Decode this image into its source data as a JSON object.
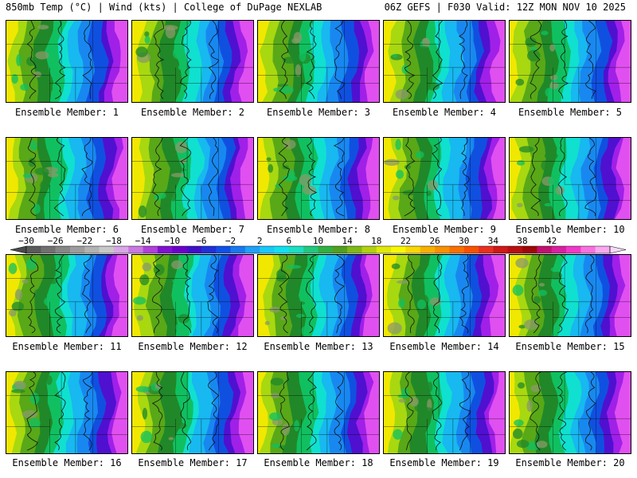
{
  "header": {
    "left": "850mb Temp (°C) | Wind (kts) | College of DuPage NEXLAB",
    "right": "06Z GEFS | F030 Valid: 12Z MON NOV 10 2025"
  },
  "colorbar": {
    "tick_labels": [
      "−30",
      "−26",
      "−22",
      "−18",
      "−14",
      "−10",
      "−6",
      "−2",
      "2",
      "6",
      "10",
      "14",
      "18",
      "22",
      "26",
      "30",
      "34",
      "38",
      "42"
    ],
    "colors": [
      "#5a5a5a",
      "#707070",
      "#868686",
      "#9c9c9c",
      "#b2b2b2",
      "#c8c8c8",
      "#d9a7e8",
      "#c878e0",
      "#b040d8",
      "#8010d0",
      "#6a00c8",
      "#4010c8",
      "#2030d8",
      "#1050e8",
      "#1878f0",
      "#20a0f8",
      "#18c8f8",
      "#10e0f0",
      "#18e0c0",
      "#20c880",
      "#30b040",
      "#50a020",
      "#80b818",
      "#b0d010",
      "#e0e808",
      "#f8f800",
      "#f8d800",
      "#f8b000",
      "#f89000",
      "#f87000",
      "#f85000",
      "#e83020",
      "#d01818",
      "#b81010",
      "#a00808",
      "#c01070",
      "#d820a0",
      "#f038c8",
      "#f870e0",
      "#f8a8f0"
    ]
  },
  "members": [
    {
      "label": "Ensemble Member: 1"
    },
    {
      "label": "Ensemble Member: 2"
    },
    {
      "label": "Ensemble Member: 3"
    },
    {
      "label": "Ensemble Member: 4"
    },
    {
      "label": "Ensemble Member: 5"
    },
    {
      "label": "Ensemble Member: 6"
    },
    {
      "label": "Ensemble Member: 7"
    },
    {
      "label": "Ensemble Member: 8"
    },
    {
      "label": "Ensemble Member: 9"
    },
    {
      "label": "Ensemble Member: 10"
    },
    {
      "label": "Ensemble Member: 11"
    },
    {
      "label": "Ensemble Member: 12"
    },
    {
      "label": "Ensemble Member: 13"
    },
    {
      "label": "Ensemble Member: 14"
    },
    {
      "label": "Ensemble Member: 15"
    },
    {
      "label": "Ensemble Member: 16"
    },
    {
      "label": "Ensemble Member: 17"
    },
    {
      "label": "Ensemble Member: 18"
    },
    {
      "label": "Ensemble Member: 19"
    },
    {
      "label": "Ensemble Member: 20"
    }
  ],
  "map_colors": {
    "band_colors": [
      "#f0e800",
      "#a8d810",
      "#58a818",
      "#208828",
      "#10c060",
      "#10e0d0",
      "#18b8f0",
      "#1888f0",
      "#1050e0",
      "#5010d0",
      "#a020e8",
      "#e050f0"
    ],
    "gray_shade": "#8a9a6a",
    "border_color": "#000000",
    "contour_color": "#111111"
  }
}
